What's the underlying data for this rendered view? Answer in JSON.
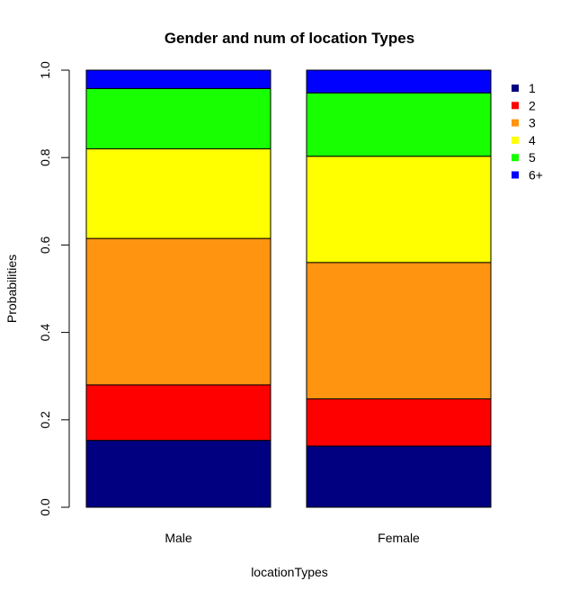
{
  "chart_data": {
    "type": "bar",
    "stacked": true,
    "title": "Gender and num of location Types",
    "xlabel": "locationTypes",
    "ylabel": "Probabilities",
    "ylim": [
      0,
      1
    ],
    "yticks": [
      0.0,
      0.2,
      0.4,
      0.6,
      0.8,
      1.0
    ],
    "ytick_labels": [
      "0.0",
      "0.2",
      "0.4",
      "0.6",
      "0.8",
      "1.0"
    ],
    "categories": [
      "Male",
      "Female"
    ],
    "series": [
      {
        "name": "1",
        "color": "#000080",
        "values": [
          0.153,
          0.14
        ]
      },
      {
        "name": "2",
        "color": "#ff0000",
        "values": [
          0.127,
          0.108
        ]
      },
      {
        "name": "3",
        "color": "#ff9410",
        "values": [
          0.335,
          0.312
        ]
      },
      {
        "name": "4",
        "color": "#ffff00",
        "values": [
          0.205,
          0.243
        ]
      },
      {
        "name": "5",
        "color": "#17ff00",
        "values": [
          0.138,
          0.145
        ]
      },
      {
        "name": "6+",
        "color": "#0000ff",
        "values": [
          0.042,
          0.052
        ]
      }
    ],
    "legend_position": "right"
  }
}
